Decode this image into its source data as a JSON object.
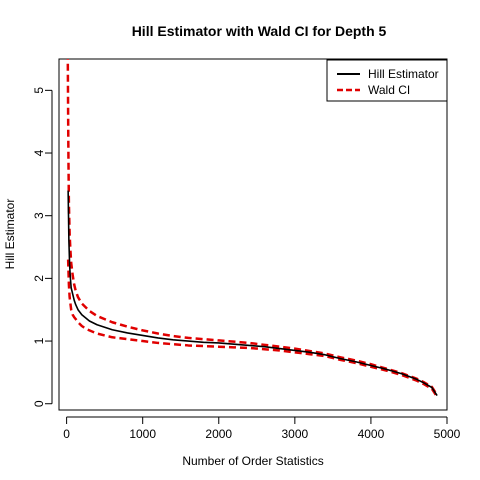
{
  "chart_data": {
    "type": "line",
    "title": "Hill Estimator with Wald CI for Depth 5",
    "xlabel": "Number of Order Statistics",
    "ylabel": "Hill Estimator",
    "xlim": [
      -100,
      5000
    ],
    "ylim": [
      -0.1,
      5.5
    ],
    "xticks": [
      0,
      1000,
      2000,
      3000,
      4000,
      5000
    ],
    "yticks": [
      0,
      1,
      2,
      3,
      4,
      5
    ],
    "grid": false,
    "legend": {
      "position": "top-right",
      "entries": [
        {
          "label": "Hill Estimator",
          "color": "#000000",
          "style": "solid"
        },
        {
          "label": "Wald CI",
          "color": "#e00000",
          "style": "dashed"
        }
      ]
    },
    "series": [
      {
        "name": "Hill Estimator",
        "color": "#000000",
        "style": "solid",
        "x": [
          20,
          30,
          40,
          50,
          60,
          80,
          100,
          120,
          150,
          200,
          250,
          300,
          400,
          500,
          600,
          800,
          1000,
          1200,
          1400,
          1600,
          1800,
          2000,
          2200,
          2400,
          2600,
          2800,
          3000,
          3200,
          3400,
          3600,
          3800,
          4000,
          4200,
          4400,
          4600,
          4700,
          4800,
          4870
        ],
        "values": [
          3.4,
          2.6,
          2.2,
          2.0,
          1.85,
          1.75,
          1.65,
          1.58,
          1.5,
          1.42,
          1.37,
          1.32,
          1.26,
          1.22,
          1.18,
          1.13,
          1.09,
          1.05,
          1.02,
          1.0,
          0.98,
          0.97,
          0.95,
          0.93,
          0.91,
          0.88,
          0.85,
          0.82,
          0.78,
          0.72,
          0.67,
          0.61,
          0.55,
          0.48,
          0.39,
          0.33,
          0.26,
          0.13
        ]
      },
      {
        "name": "Wald CI",
        "color": "#e00000",
        "style": "dashed",
        "x": [
          15,
          20,
          25,
          30,
          40,
          50,
          60,
          80,
          100,
          120,
          150,
          200,
          250,
          300,
          400,
          500,
          600,
          800,
          1000,
          1200,
          1400,
          1600,
          1800,
          2000,
          2200,
          2400,
          2600,
          2800,
          3000,
          3200,
          3400,
          3600,
          3800,
          4000,
          4200,
          4400,
          4600,
          4700,
          4800,
          4870
        ],
        "values": [
          5.6,
          4.6,
          3.8,
          3.2,
          2.7,
          2.45,
          2.25,
          2.05,
          1.9,
          1.8,
          1.7,
          1.6,
          1.54,
          1.48,
          1.4,
          1.35,
          1.3,
          1.23,
          1.17,
          1.12,
          1.08,
          1.05,
          1.03,
          1.01,
          0.99,
          0.97,
          0.94,
          0.91,
          0.88,
          0.84,
          0.8,
          0.74,
          0.69,
          0.63,
          0.56,
          0.49,
          0.4,
          0.34,
          0.27,
          0.14
        ]
      },
      {
        "name": "",
        "color": "#e00000",
        "style": "dashed",
        "x": [
          20,
          30,
          40,
          50,
          60,
          80,
          100,
          120,
          150,
          200,
          250,
          300,
          400,
          500,
          600,
          800,
          1000,
          1200,
          1400,
          1600,
          1800,
          2000,
          2200,
          2400,
          2600,
          2800,
          3000,
          3200,
          3400,
          3600,
          3800,
          4000,
          4200,
          4400,
          4600,
          4700,
          4800,
          4870
        ],
        "values": [
          2.3,
          1.9,
          1.7,
          1.6,
          1.5,
          1.42,
          1.38,
          1.35,
          1.3,
          1.24,
          1.2,
          1.17,
          1.12,
          1.09,
          1.06,
          1.03,
          1.0,
          0.97,
          0.95,
          0.93,
          0.92,
          0.91,
          0.9,
          0.89,
          0.87,
          0.85,
          0.82,
          0.79,
          0.76,
          0.7,
          0.65,
          0.59,
          0.53,
          0.46,
          0.37,
          0.31,
          0.24,
          0.11
        ]
      }
    ]
  }
}
